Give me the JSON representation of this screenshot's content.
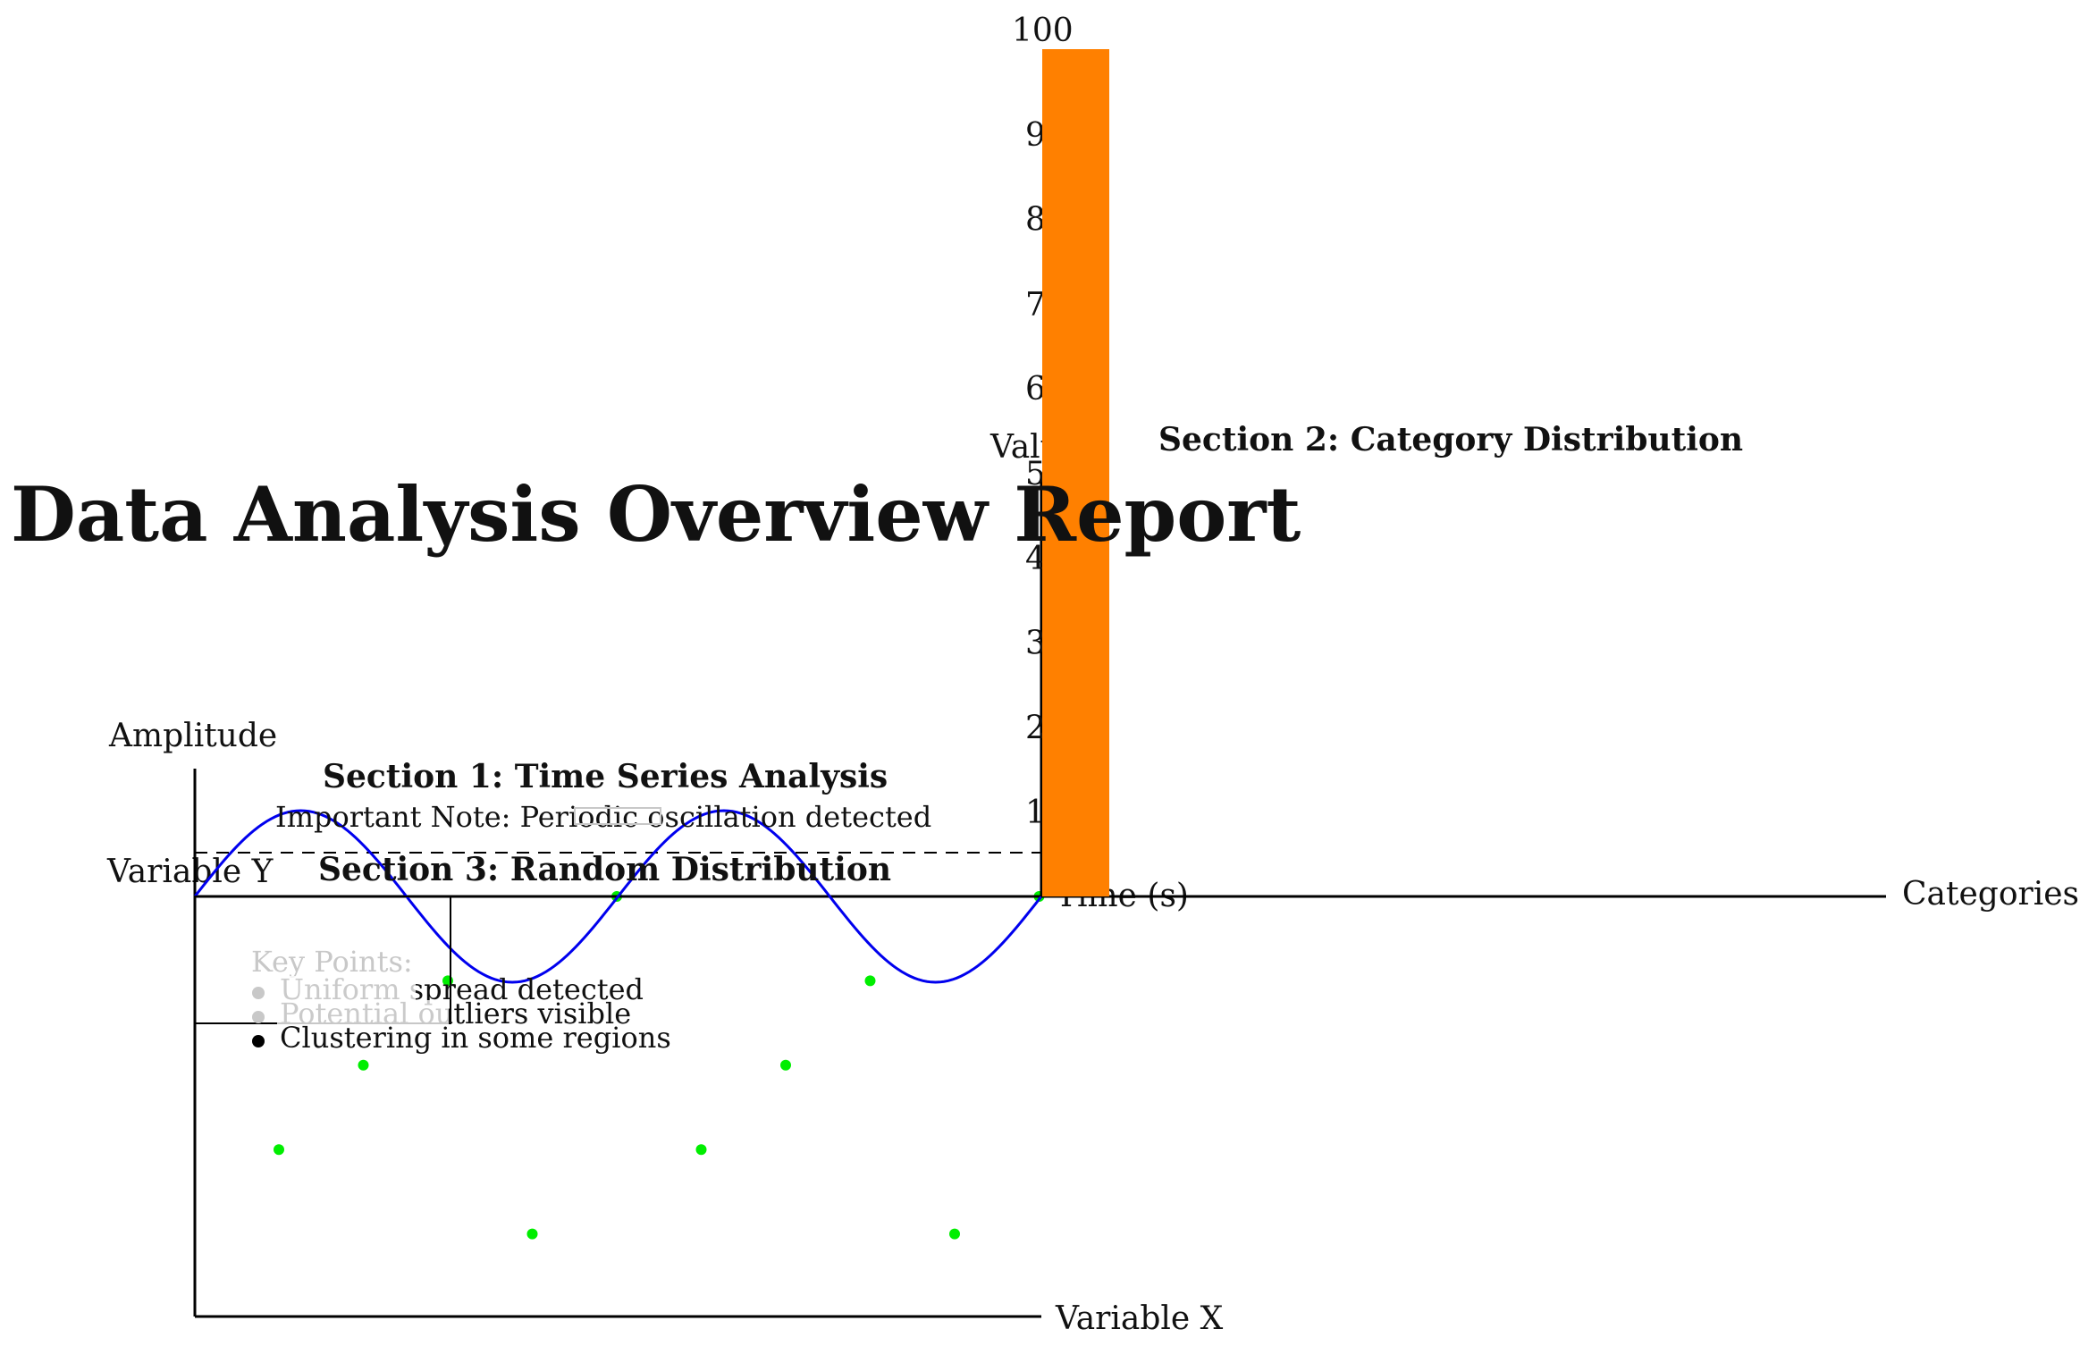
{
  "page": {
    "title": "Data Analysis Overview Report"
  },
  "section1": {
    "heading": "Section 1: Time Series Analysis",
    "note": "Important Note: Periodic oscillation detected",
    "ylabel": "Amplitude",
    "xlabel": "Time (s)"
  },
  "section2": {
    "heading": "Section 2: Category Distribution",
    "ylabel": "Value",
    "xlabel": "Categories",
    "ticks": [
      "100",
      "90",
      "80",
      "70",
      "60",
      "50",
      "40",
      "30",
      "20",
      "10"
    ]
  },
  "section3": {
    "heading": "Section 3: Random Distribution",
    "ylabel": "Variable Y",
    "xlabel": "Variable X",
    "key_points_title": "Key Points:",
    "key_points": [
      "Uniform spread detected",
      "Potential outliers visible",
      "Clustering in some regions"
    ]
  },
  "colors": {
    "line": "#0000ee",
    "bar": "#ff8000",
    "points": "#00ee00",
    "faint_text": "#c8c8c8"
  },
  "chart_data": [
    {
      "type": "line",
      "title": "Section 1: Time Series Analysis",
      "xlabel": "Time (s)",
      "ylabel": "Amplitude",
      "annotation": "Important Note: Periodic oscillation detected",
      "function": "sine, two periods",
      "x": [
        0,
        0.5,
        1,
        1.5,
        2,
        2.5,
        3,
        3.5,
        4,
        4.5,
        5,
        5.5,
        6,
        6.5,
        7,
        7.5,
        8,
        8.5,
        9,
        9.5,
        10
      ],
      "series": [
        {
          "values": [
            0,
            0.59,
            0.95,
            0.95,
            0.59,
            0,
            -0.59,
            -0.95,
            -0.95,
            -0.59,
            0,
            0.59,
            0.95,
            0.95,
            0.59,
            0,
            -0.59,
            -0.95,
            -0.95,
            -0.59,
            0
          ],
          "color": "#0000ee"
        }
      ],
      "reference_line": {
        "y": 0.5,
        "style": "dashed"
      }
    },
    {
      "type": "bar",
      "title": "Section 2: Category Distribution",
      "xlabel": "Categories",
      "ylabel": "Value",
      "ylim": [
        0,
        100
      ],
      "yticks": [
        10,
        20,
        30,
        40,
        50,
        60,
        70,
        80,
        90,
        100
      ],
      "categories": [
        ""
      ],
      "values": [
        100
      ],
      "color": "#ff8000"
    },
    {
      "type": "scatter",
      "title": "Section 3: Random Distribution",
      "xlabel": "Variable X",
      "ylabel": "Variable Y",
      "points": [
        {
          "x": 1,
          "y": 2
        },
        {
          "x": 2,
          "y": 3
        },
        {
          "x": 3,
          "y": 4
        },
        {
          "x": 4,
          "y": 1
        },
        {
          "x": 5,
          "y": 5
        },
        {
          "x": 6,
          "y": 2
        },
        {
          "x": 7,
          "y": 3
        },
        {
          "x": 8,
          "y": 4
        },
        {
          "x": 9,
          "y": 1
        },
        {
          "x": 10,
          "y": 5
        }
      ],
      "color": "#00ee00",
      "key_points": [
        "Uniform spread detected",
        "Potential outliers visible",
        "Clustering in some regions"
      ]
    }
  ]
}
